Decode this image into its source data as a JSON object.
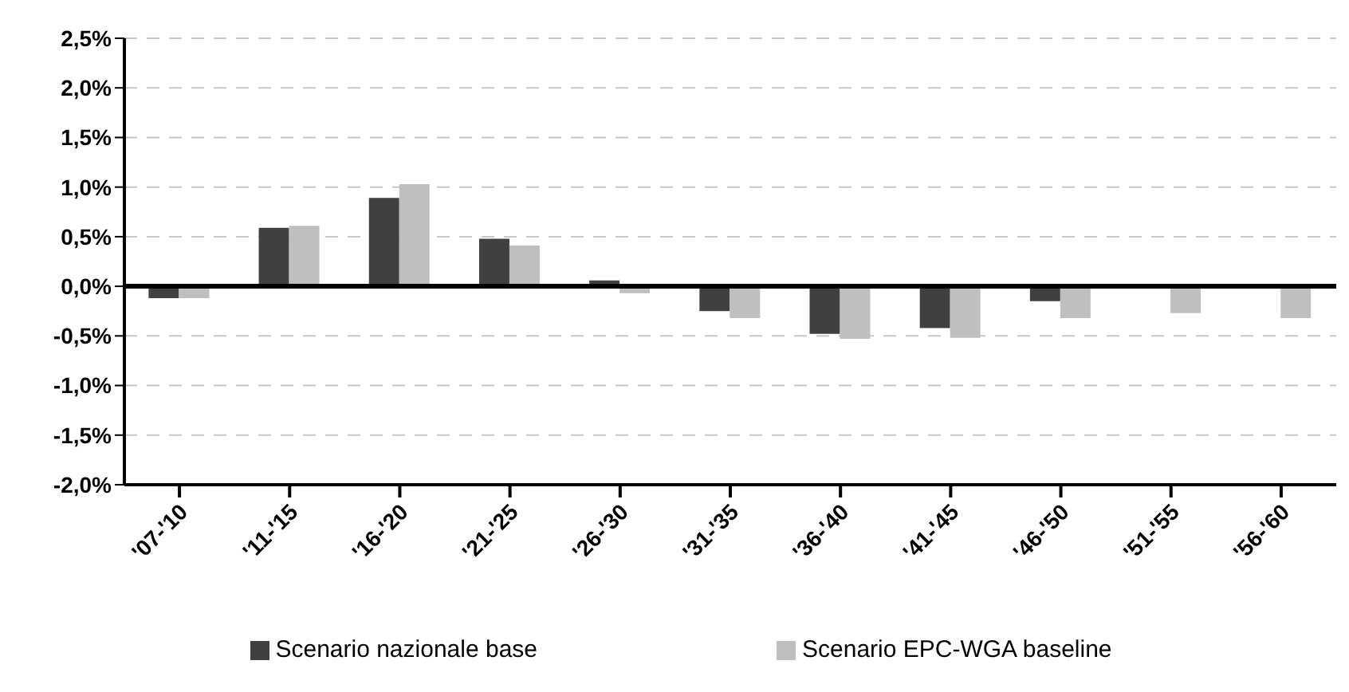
{
  "chart_data": {
    "type": "bar",
    "categories": [
      "'07-'10",
      "'11-'15",
      "'16-'20",
      "'21-'25",
      "'26-'30",
      "'31-'35",
      "'36-'40",
      "'41-'45",
      "'46-'50",
      "'51-'55",
      "'56-'60"
    ],
    "series": [
      {
        "name": "Scenario nazionale base",
        "color": "#404040",
        "values": [
          -0.12,
          0.59,
          0.89,
          0.48,
          0.06,
          -0.25,
          -0.48,
          -0.42,
          -0.15,
          0,
          0
        ]
      },
      {
        "name": "Scenario EPC-WGA baseline",
        "color": "#bfbfbf",
        "values": [
          -0.12,
          0.61,
          1.03,
          0.41,
          -0.07,
          -0.32,
          -0.53,
          -0.52,
          -0.32,
          -0.27,
          -0.32
        ]
      }
    ],
    "ylim": [
      -2,
      2.5
    ],
    "yticks": [
      {
        "value": -2,
        "label": "-2,0%"
      },
      {
        "value": -1.5,
        "label": "-1,5%"
      },
      {
        "value": -1,
        "label": "-1,0%"
      },
      {
        "value": -0.5,
        "label": "-0,5%"
      },
      {
        "value": 0,
        "label": "0,0%"
      },
      {
        "value": 0.5,
        "label": "0,5%"
      },
      {
        "value": 1,
        "label": "1,0%"
      },
      {
        "value": 1.5,
        "label": "1,5%"
      },
      {
        "value": 2,
        "label": "2,0%"
      },
      {
        "value": 2.5,
        "label": "2,5%"
      }
    ],
    "grid": "y",
    "legend": "bottom",
    "ref_lines": [
      {
        "axis": "y",
        "value": 0,
        "color": "#000000"
      }
    ]
  }
}
